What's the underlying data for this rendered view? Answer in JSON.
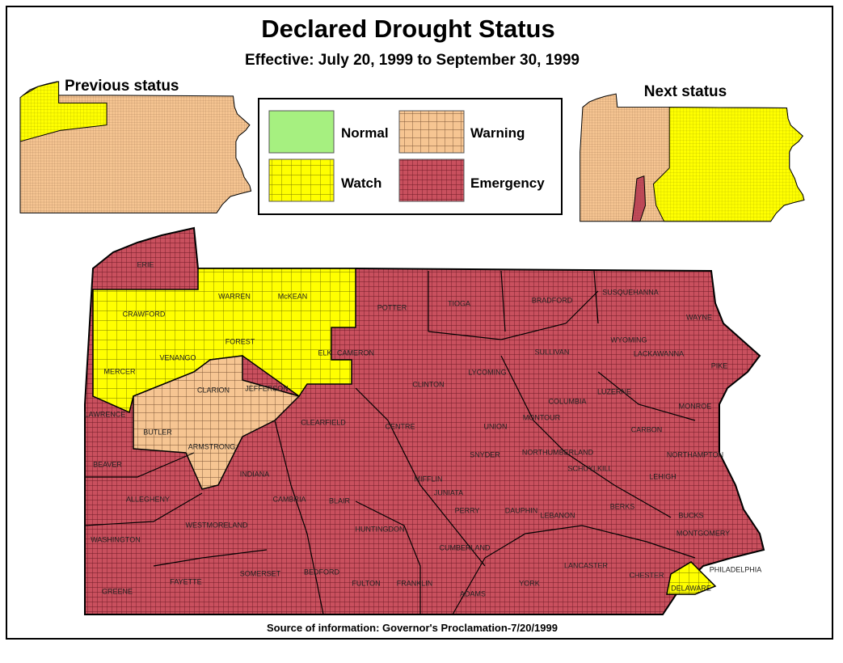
{
  "title": "Declared Drought Status",
  "subtitle": "Effective:  July 20, 1999 to September 30, 1999",
  "previous_label": "Previous status",
  "next_label": "Next status",
  "legend": [
    "Normal",
    "Watch",
    "Warning",
    "Emergency"
  ],
  "counties": [
    "ERIE",
    "WARREN",
    "McKEAN",
    "POTTER",
    "TIOGA",
    "BRADFORD",
    "SUSQUEHANNA",
    "WAYNE",
    "CRAWFORD",
    "FOREST",
    "ELK",
    "CAMERON",
    "VENANGO",
    "SULLIVAN",
    "WYOMING",
    "LACKAWANNA",
    "PIKE",
    "MERCER",
    "CLARION",
    "JEFFERSON",
    "CLINTON",
    "LYCOMING",
    "LUZERNE",
    "LAWRENCE",
    "COLUMBIA",
    "MONROE",
    "CLEARFIELD",
    "CENTRE",
    "UNION",
    "MONTOUR",
    "CARBON",
    "BUTLER",
    "ARMSTRONG",
    "SNYDER",
    "NORTHUMBERLAND",
    "NORTHAMPTON",
    "BEAVER",
    "INDIANA",
    "SCHUYLKILL",
    "LEHIGH",
    "MIFFLIN",
    "JUNIATA",
    "ALLEGHENY",
    "CAMBRIA",
    "BLAIR",
    "PERRY",
    "DAUPHIN",
    "LEBANON",
    "BERKS",
    "BUCKS",
    "WESTMORELAND",
    "HUNTINGDON",
    "MONTGOMERY",
    "WASHINGTON",
    "CUMBERLAND",
    "LANCASTER",
    "CHESTER",
    "PHILADELPHIA",
    "GREENE",
    "FAYETTE",
    "SOMERSET",
    "BEDFORD",
    "FULTON",
    "FRANKLIN",
    "ADAMS",
    "YORK",
    "DELAWARE"
  ],
  "source": "Source of information: Governor's Proclamation-7/20/1999"
}
